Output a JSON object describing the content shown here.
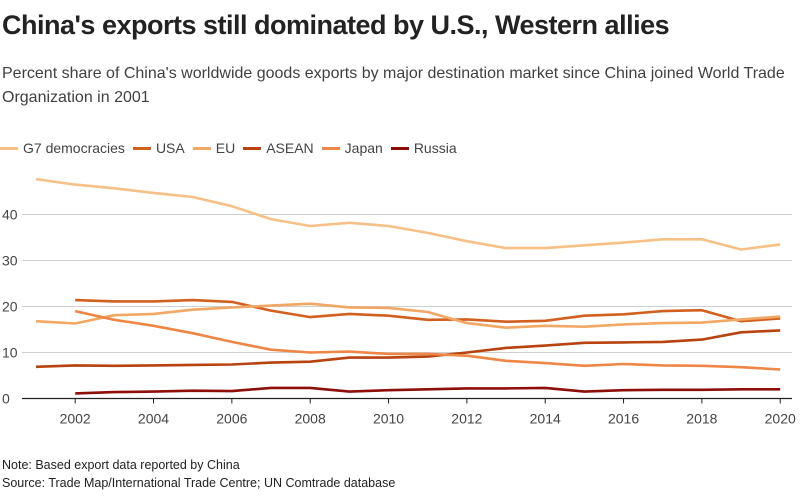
{
  "chart_data": {
    "type": "line",
    "title": "China's exports still dominated by U.S., Western allies",
    "subtitle": "Percent share of China's worldwide goods exports by major destination market since China joined World Trade Organization in 2001",
    "xlabel": "",
    "ylabel": "",
    "x": [
      2001,
      2002,
      2003,
      2004,
      2005,
      2006,
      2007,
      2008,
      2009,
      2010,
      2011,
      2012,
      2013,
      2014,
      2015,
      2016,
      2017,
      2018,
      2019,
      2020
    ],
    "xticks": [
      "2002",
      "2004",
      "2006",
      "2008",
      "2010",
      "2012",
      "2014",
      "2016",
      "2018",
      "2020"
    ],
    "yticks": [
      "0",
      "10",
      "20",
      "30",
      "40"
    ],
    "ylim": [
      0,
      50
    ],
    "xlim": [
      2001,
      2020
    ],
    "grid": true,
    "legend_position": "top-left",
    "series": [
      {
        "name": "G7 democracies",
        "color": "#f7c086",
        "values": [
          47.7,
          46.5,
          45.7,
          44.7,
          43.8,
          41.8,
          39.0,
          37.5,
          38.2,
          37.5,
          36.0,
          34.2,
          32.7,
          32.7,
          33.3,
          33.9,
          34.6,
          34.6,
          32.4,
          33.5
        ]
      },
      {
        "name": "USA",
        "color": "#d2601f",
        "values": [
          null,
          21.4,
          21.1,
          21.1,
          21.4,
          21.0,
          19.1,
          17.7,
          18.4,
          18.0,
          17.1,
          17.2,
          16.7,
          16.9,
          18.0,
          18.3,
          19.0,
          19.2,
          16.8,
          17.4
        ]
      },
      {
        "name": "EU",
        "color": "#f3a764",
        "values": [
          16.8,
          16.3,
          18.1,
          18.4,
          19.3,
          19.8,
          20.2,
          20.6,
          19.8,
          19.7,
          18.8,
          16.4,
          15.4,
          15.8,
          15.6,
          16.1,
          16.4,
          16.5,
          17.2,
          17.8
        ]
      },
      {
        "name": "ASEAN",
        "color": "#b8430f",
        "values": [
          6.9,
          7.2,
          7.1,
          7.2,
          7.3,
          7.4,
          7.8,
          8.0,
          8.9,
          8.9,
          9.1,
          10.0,
          11.0,
          11.5,
          12.1,
          12.2,
          12.3,
          12.8,
          14.4,
          14.8
        ]
      },
      {
        "name": "Japan",
        "color": "#ee8646",
        "values": [
          null,
          19.0,
          17.1,
          15.8,
          14.2,
          12.3,
          10.6,
          10.0,
          10.2,
          9.7,
          9.7,
          9.3,
          8.2,
          7.7,
          7.1,
          7.5,
          7.2,
          7.1,
          6.8,
          6.3
        ]
      },
      {
        "name": "Russia",
        "color": "#8e0e0a",
        "values": [
          null,
          1.1,
          1.4,
          1.5,
          1.7,
          1.6,
          2.3,
          2.3,
          1.5,
          1.8,
          2.0,
          2.2,
          2.2,
          2.3,
          1.5,
          1.8,
          1.9,
          1.9,
          2.0,
          2.0
        ]
      }
    ]
  },
  "notes": {
    "note": "Note: Based export data reported by China",
    "source": "Source: Trade Map/International Trade Centre; UN Comtrade database"
  }
}
